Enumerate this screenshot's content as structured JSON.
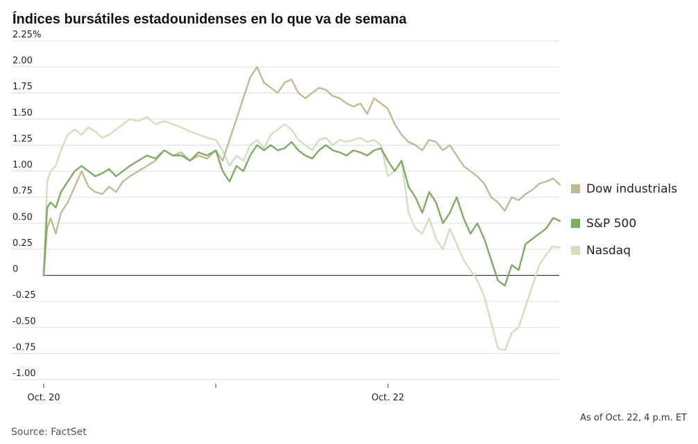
{
  "chart_data": {
    "type": "line",
    "title": "Índices bursátiles estadounidenses en lo que va de semana",
    "ylabel": "",
    "xlabel": "",
    "ylim": [
      -1.0,
      2.25
    ],
    "y_ticks": [
      "2.25%",
      "2.00",
      "1.75",
      "1.50",
      "1.25",
      "1.00",
      "0.75",
      "0.50",
      "0.25",
      "0",
      "-0.25",
      "-0.50",
      "-0.75",
      "-1.00"
    ],
    "y_tick_values": [
      2.25,
      2.0,
      1.75,
      1.5,
      1.25,
      1.0,
      0.75,
      0.5,
      0.25,
      0,
      -0.25,
      -0.5,
      -0.75,
      -1.0
    ],
    "x_domain": [
      0,
      3
    ],
    "x_tick_marks": [
      0,
      1,
      2
    ],
    "x_labels": [
      {
        "label": "Oct. 20",
        "x": 0
      },
      {
        "label": "Oct. 22",
        "x": 2
      }
    ],
    "series": [
      {
        "name": "Dow industrials",
        "color": "#c3b991",
        "x": [
          0,
          0.02,
          0.04,
          0.07,
          0.1,
          0.14,
          0.18,
          0.22,
          0.26,
          0.3,
          0.34,
          0.38,
          0.42,
          0.46,
          0.5,
          0.55,
          0.6,
          0.65,
          0.7,
          0.75,
          0.8,
          0.85,
          0.9,
          0.95,
          1.0,
          1.04,
          1.08,
          1.12,
          1.16,
          1.2,
          1.24,
          1.28,
          1.32,
          1.36,
          1.4,
          1.44,
          1.48,
          1.52,
          1.56,
          1.6,
          1.64,
          1.68,
          1.72,
          1.76,
          1.8,
          1.84,
          1.88,
          1.92,
          1.96,
          2.0,
          2.04,
          2.08,
          2.12,
          2.16,
          2.2,
          2.24,
          2.28,
          2.32,
          2.36,
          2.4,
          2.44,
          2.48,
          2.52,
          2.56,
          2.6,
          2.64,
          2.68,
          2.72,
          2.76,
          2.8,
          2.84,
          2.88,
          2.92,
          2.96,
          2.98,
          3.0
        ],
        "values": [
          0,
          0.45,
          0.55,
          0.4,
          0.6,
          0.7,
          0.85,
          1.0,
          0.85,
          0.8,
          0.78,
          0.85,
          0.8,
          0.9,
          0.95,
          1.0,
          1.05,
          1.1,
          1.2,
          1.15,
          1.18,
          1.1,
          1.15,
          1.12,
          1.2,
          1.1,
          1.3,
          1.5,
          1.7,
          1.9,
          2.0,
          1.85,
          1.8,
          1.75,
          1.85,
          1.88,
          1.75,
          1.7,
          1.75,
          1.8,
          1.78,
          1.72,
          1.7,
          1.65,
          1.62,
          1.65,
          1.55,
          1.7,
          1.65,
          1.6,
          1.45,
          1.35,
          1.28,
          1.25,
          1.2,
          1.3,
          1.28,
          1.2,
          1.25,
          1.15,
          1.05,
          1.0,
          0.95,
          0.88,
          0.75,
          0.7,
          0.62,
          0.75,
          0.72,
          0.78,
          0.82,
          0.88,
          0.9,
          0.93,
          0.9,
          0.87
        ]
      },
      {
        "name": "S&P 500",
        "color": "#7aad5f",
        "x": [
          0,
          0.02,
          0.04,
          0.07,
          0.1,
          0.14,
          0.18,
          0.22,
          0.26,
          0.3,
          0.34,
          0.38,
          0.42,
          0.46,
          0.5,
          0.55,
          0.6,
          0.65,
          0.7,
          0.75,
          0.8,
          0.85,
          0.9,
          0.95,
          1.0,
          1.04,
          1.08,
          1.12,
          1.16,
          1.2,
          1.24,
          1.28,
          1.32,
          1.36,
          1.4,
          1.44,
          1.48,
          1.52,
          1.56,
          1.6,
          1.64,
          1.68,
          1.72,
          1.76,
          1.8,
          1.84,
          1.88,
          1.92,
          1.96,
          2.0,
          2.04,
          2.08,
          2.12,
          2.16,
          2.2,
          2.24,
          2.28,
          2.32,
          2.36,
          2.4,
          2.44,
          2.48,
          2.52,
          2.56,
          2.6,
          2.64,
          2.68,
          2.72,
          2.76,
          2.8,
          2.84,
          2.88,
          2.92,
          2.96,
          2.98,
          3.0
        ],
        "values": [
          0,
          0.65,
          0.7,
          0.65,
          0.8,
          0.9,
          1.0,
          1.05,
          1.0,
          0.95,
          0.98,
          1.02,
          0.95,
          1.0,
          1.05,
          1.1,
          1.15,
          1.12,
          1.2,
          1.15,
          1.15,
          1.1,
          1.18,
          1.15,
          1.2,
          1.0,
          0.9,
          1.05,
          1.0,
          1.15,
          1.25,
          1.2,
          1.25,
          1.2,
          1.22,
          1.28,
          1.2,
          1.15,
          1.12,
          1.2,
          1.25,
          1.2,
          1.18,
          1.15,
          1.2,
          1.18,
          1.15,
          1.2,
          1.22,
          1.1,
          1.0,
          1.1,
          0.85,
          0.75,
          0.6,
          0.8,
          0.7,
          0.5,
          0.6,
          0.75,
          0.55,
          0.4,
          0.5,
          0.35,
          0.15,
          -0.05,
          -0.1,
          0.1,
          0.05,
          0.3,
          0.35,
          0.4,
          0.45,
          0.55,
          0.54,
          0.52
        ]
      },
      {
        "name": "Nasdaq",
        "color": "#cfe0bd",
        "x": [
          0,
          0.02,
          0.04,
          0.07,
          0.1,
          0.14,
          0.18,
          0.22,
          0.26,
          0.3,
          0.34,
          0.38,
          0.42,
          0.46,
          0.5,
          0.55,
          0.6,
          0.65,
          0.7,
          0.75,
          0.8,
          0.85,
          0.9,
          0.95,
          1.0,
          1.04,
          1.08,
          1.12,
          1.16,
          1.2,
          1.24,
          1.28,
          1.32,
          1.36,
          1.4,
          1.44,
          1.48,
          1.52,
          1.56,
          1.6,
          1.64,
          1.68,
          1.72,
          1.76,
          1.8,
          1.84,
          1.88,
          1.92,
          1.96,
          2.0,
          2.04,
          2.08,
          2.12,
          2.16,
          2.2,
          2.24,
          2.28,
          2.32,
          2.36,
          2.4,
          2.44,
          2.48,
          2.52,
          2.56,
          2.6,
          2.64,
          2.68,
          2.72,
          2.76,
          2.8,
          2.84,
          2.88,
          2.92,
          2.96,
          2.98,
          3.0
        ],
        "values": [
          0,
          0.9,
          1.0,
          1.05,
          1.2,
          1.35,
          1.4,
          1.35,
          1.42,
          1.38,
          1.32,
          1.35,
          1.4,
          1.45,
          1.5,
          1.48,
          1.52,
          1.45,
          1.48,
          1.45,
          1.42,
          1.38,
          1.35,
          1.32,
          1.3,
          1.2,
          1.05,
          1.15,
          1.1,
          1.25,
          1.3,
          1.22,
          1.35,
          1.4,
          1.45,
          1.4,
          1.3,
          1.25,
          1.2,
          1.3,
          1.32,
          1.25,
          1.3,
          1.28,
          1.3,
          1.32,
          1.28,
          1.3,
          1.25,
          0.95,
          1.0,
          1.1,
          0.6,
          0.45,
          0.4,
          0.55,
          0.35,
          0.25,
          0.45,
          0.3,
          0.15,
          0.05,
          -0.05,
          -0.2,
          -0.45,
          -0.7,
          -0.72,
          -0.55,
          -0.5,
          -0.3,
          -0.1,
          0.1,
          0.2,
          0.28,
          0.27,
          0.27
        ]
      }
    ],
    "legend_position": "right",
    "annotation": "As of Oct. 22, 4 p.m. ET",
    "source": "Source: FactSet",
    "grid": true
  }
}
